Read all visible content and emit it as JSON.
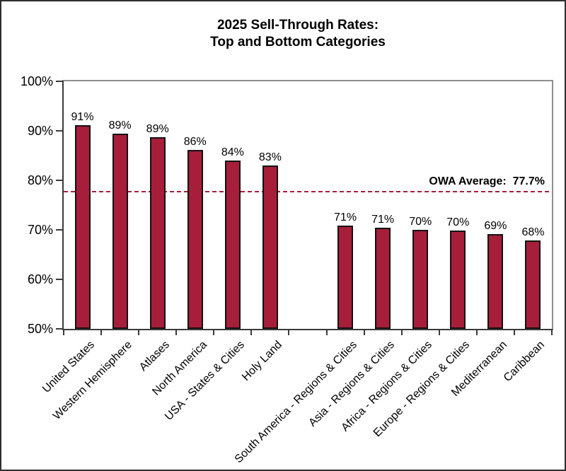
{
  "title": {
    "line1": "2025 Sell-Through Rates:",
    "line2": "Top and Bottom Categories"
  },
  "chart_data": {
    "type": "bar",
    "title": "2025 Sell-Through Rates: Top and Bottom Categories",
    "categories": [
      "United States",
      "Western Hemisphere",
      "Atlases",
      "North America",
      "USA - States & Cities",
      "Holy Land",
      "South America - Regions & Cities",
      "Asia - Regions & Cities",
      "Africa - Regions & Cities",
      "Europe - Regions & Cities",
      "Mediterranean",
      "Caribbean"
    ],
    "values": [
      91.2,
      89.4,
      88.7,
      86.1,
      84.0,
      83.0,
      70.9,
      70.5,
      70.0,
      69.8,
      69.2,
      67.8
    ],
    "value_labels": [
      "91%",
      "89%",
      "89%",
      "86%",
      "84%",
      "83%",
      "71%",
      "71%",
      "70%",
      "70%",
      "69%",
      "68%"
    ],
    "average_line": {
      "value": 77.7,
      "text": "OWA Average:  77.7%"
    },
    "ylim": [
      50,
      100
    ],
    "yticks": [
      {
        "value": 100,
        "label": "100%"
      },
      {
        "value": 90,
        "label": "90%"
      },
      {
        "value": 80,
        "label": "80%"
      },
      {
        "value": 70,
        "label": "70%"
      },
      {
        "value": 60,
        "label": "60%"
      },
      {
        "value": 50,
        "label": "50%"
      }
    ],
    "grid": false,
    "legend": "none",
    "layout_hints": {
      "num_slots": 13,
      "gap_slot_index": 6,
      "category_slots": [
        0,
        1,
        2,
        3,
        4,
        5,
        7,
        8,
        9,
        10,
        11,
        12
      ]
    },
    "colors": {
      "bar_fill": "#A61E39",
      "bar_border": "#111111",
      "average_line": "#A61E39",
      "axis": "#3A3A3A",
      "frame": "#8F8F8F",
      "text": "#000000"
    }
  }
}
